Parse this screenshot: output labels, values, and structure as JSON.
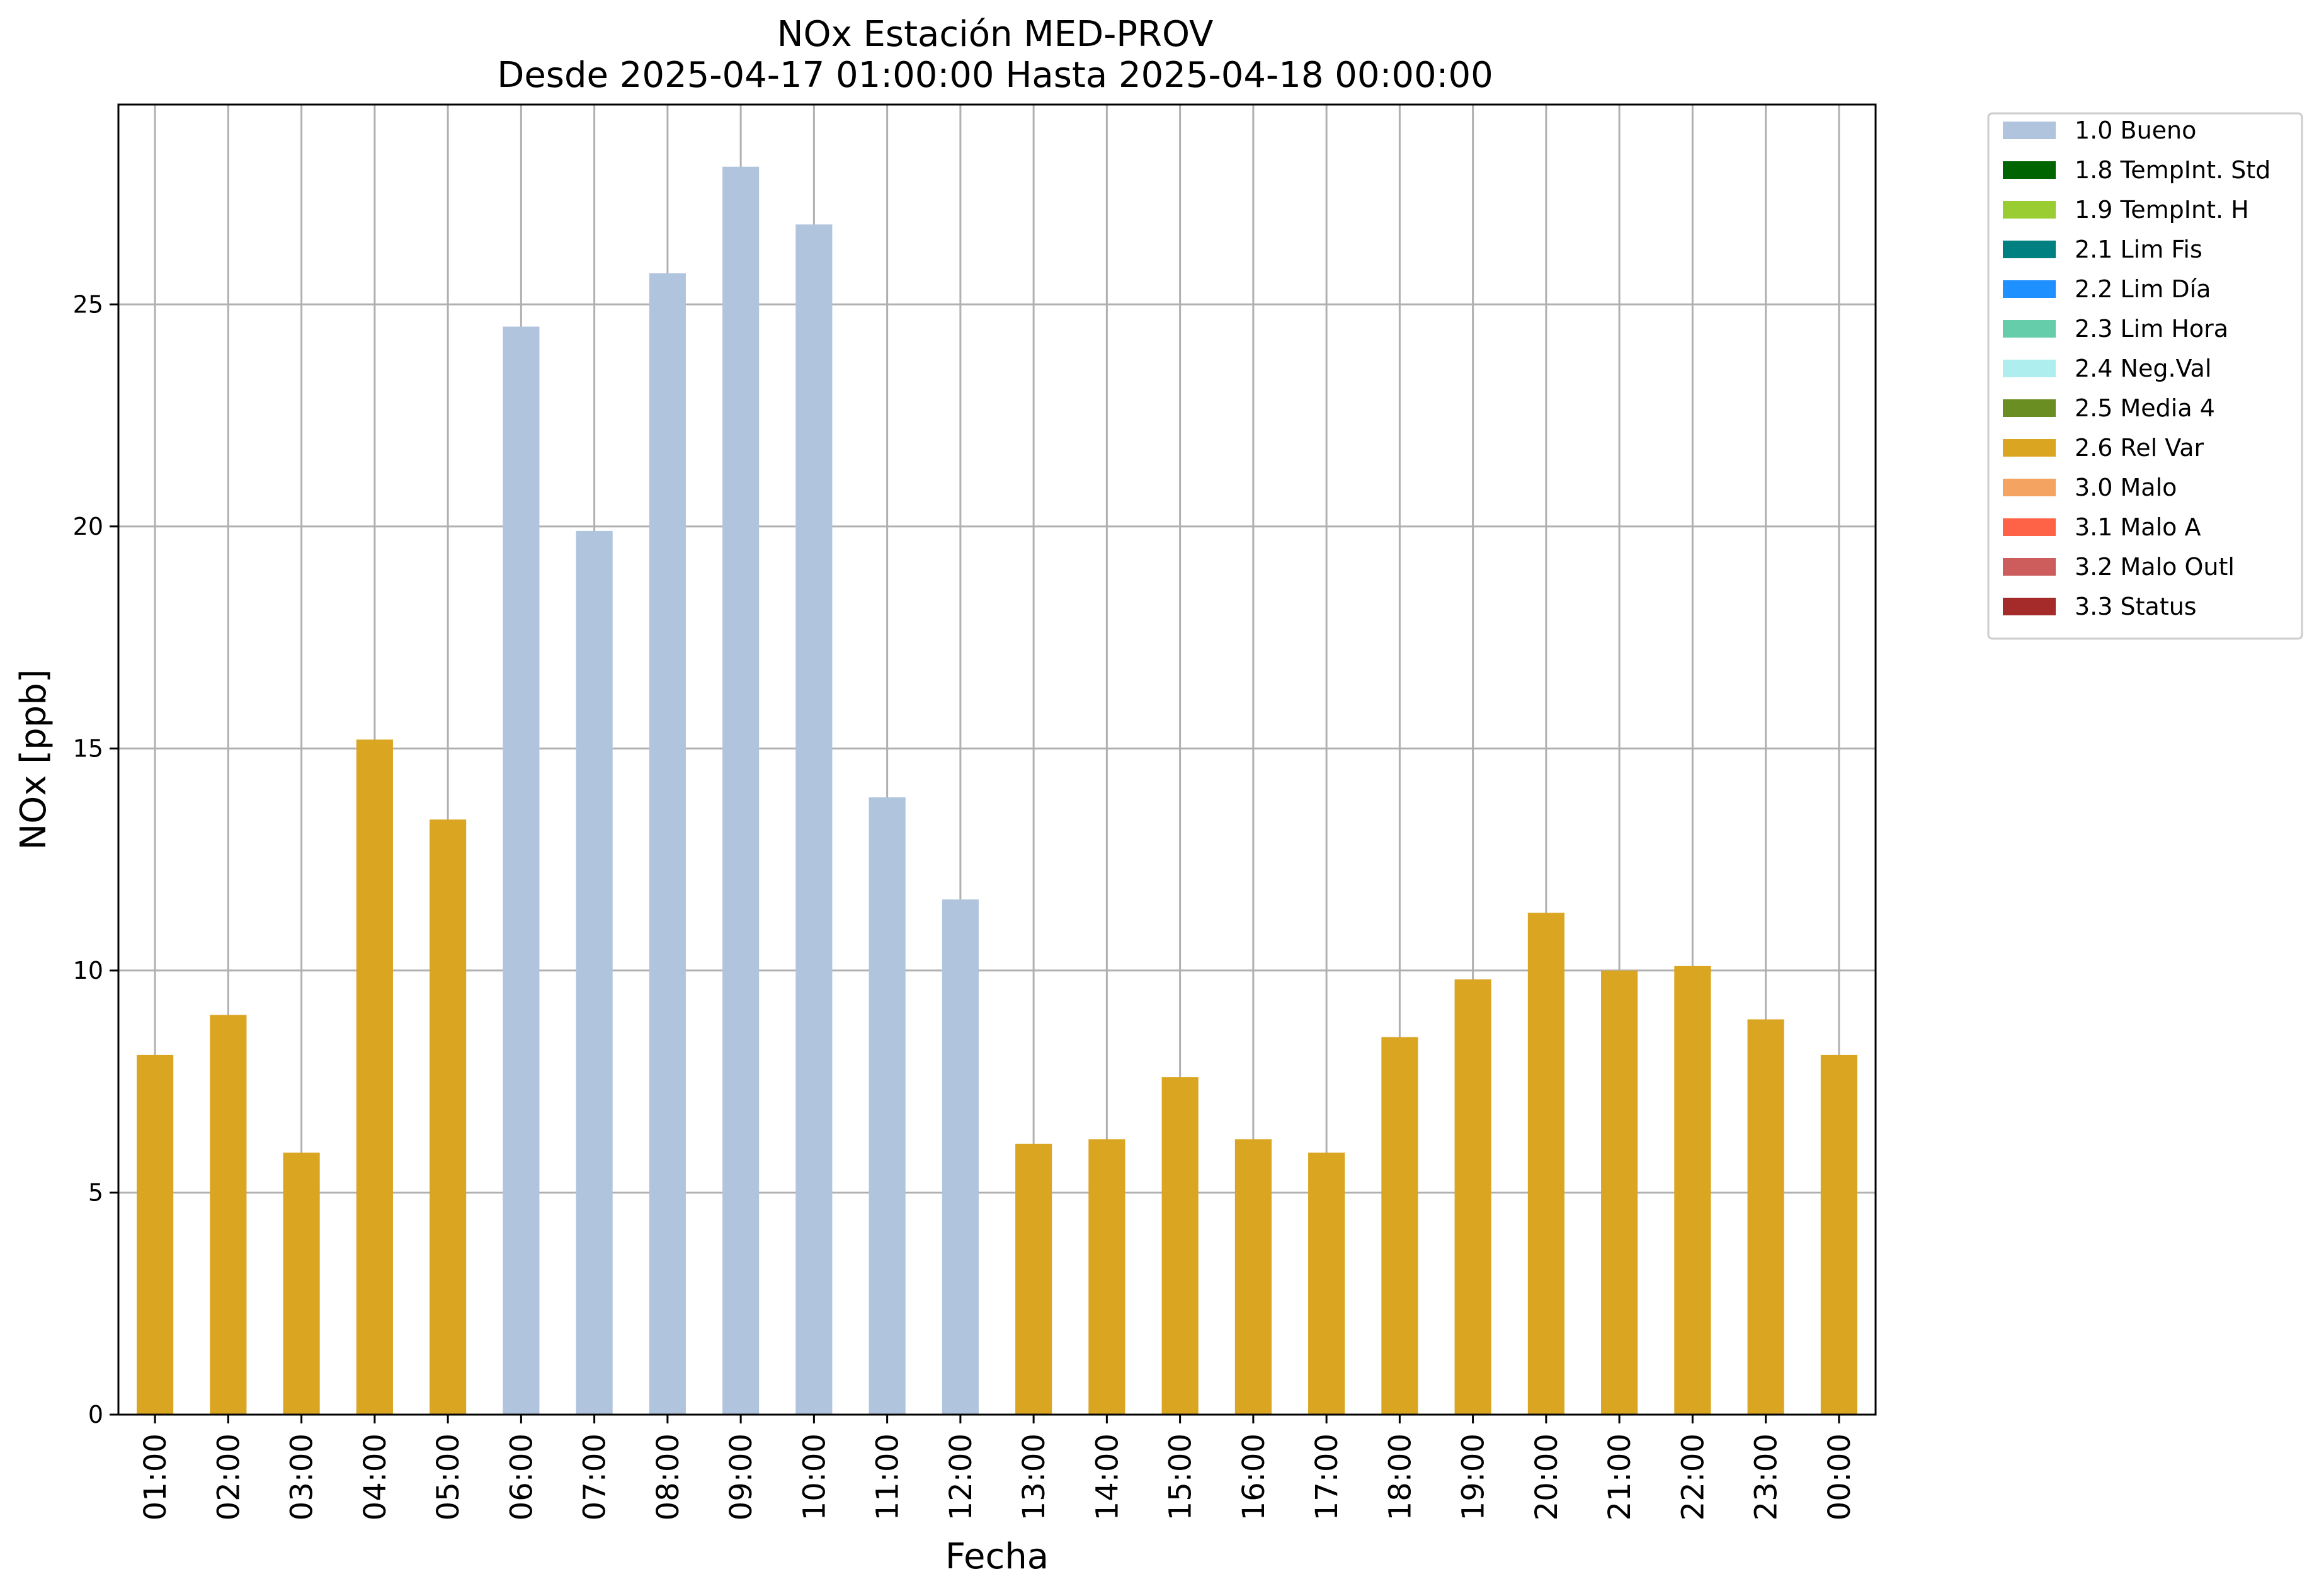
{
  "chart_data": {
    "type": "bar",
    "title": "NOx Estación MED-PROV",
    "subtitle": "Desde 2025-04-17 01:00:00 Hasta 2025-04-18 00:00:00",
    "xlabel": "Fecha",
    "ylabel": "NOx [ppb]",
    "ylim": [
      0,
      29.5
    ],
    "yticks": [
      0,
      5,
      10,
      15,
      20,
      25
    ],
    "grid": true,
    "legend_position": "outside-top-right",
    "categories": [
      "01:00",
      "02:00",
      "03:00",
      "04:00",
      "05:00",
      "06:00",
      "07:00",
      "08:00",
      "09:00",
      "10:00",
      "11:00",
      "12:00",
      "13:00",
      "14:00",
      "15:00",
      "16:00",
      "17:00",
      "18:00",
      "19:00",
      "20:00",
      "21:00",
      "22:00",
      "23:00",
      "00:00"
    ],
    "values": [
      8.1,
      9.0,
      5.9,
      15.2,
      13.4,
      24.5,
      19.9,
      25.7,
      28.1,
      26.8,
      13.9,
      11.6,
      6.1,
      6.2,
      7.6,
      6.2,
      5.9,
      8.5,
      9.8,
      11.3,
      10.0,
      10.1,
      8.9,
      8.1
    ],
    "flags": [
      "2.6",
      "2.6",
      "2.6",
      "2.6",
      "2.6",
      "1.0",
      "1.0",
      "1.0",
      "1.0",
      "1.0",
      "1.0",
      "1.0",
      "2.6",
      "2.6",
      "2.6",
      "2.6",
      "2.6",
      "2.6",
      "2.6",
      "2.6",
      "2.6",
      "2.6",
      "2.6",
      "2.6"
    ],
    "legend": [
      {
        "code": "1.0",
        "label": "1.0 Bueno",
        "color": "#b0c4de"
      },
      {
        "code": "1.8",
        "label": "1.8 TempInt. Std",
        "color": "#006400"
      },
      {
        "code": "1.9",
        "label": "1.9 TempInt. H",
        "color": "#9acd32"
      },
      {
        "code": "2.1",
        "label": "2.1 Lim Fis",
        "color": "#008080"
      },
      {
        "code": "2.2",
        "label": "2.2 Lim Día",
        "color": "#1e90ff"
      },
      {
        "code": "2.3",
        "label": "2.3 Lim Hora",
        "color": "#66cdaa"
      },
      {
        "code": "2.4",
        "label": "2.4 Neg.Val",
        "color": "#afeeee"
      },
      {
        "code": "2.5",
        "label": "2.5 Media 4",
        "color": "#6b8e23"
      },
      {
        "code": "2.6",
        "label": "2.6 Rel Var",
        "color": "#daa520"
      },
      {
        "code": "3.0",
        "label": "3.0 Malo",
        "color": "#f4a460"
      },
      {
        "code": "3.1",
        "label": "3.1 Malo A",
        "color": "#ff6347"
      },
      {
        "code": "3.2",
        "label": "3.2 Malo Outl",
        "color": "#cd5c5c"
      },
      {
        "code": "3.3",
        "label": "3.3 Status",
        "color": "#a52a2a"
      }
    ]
  }
}
